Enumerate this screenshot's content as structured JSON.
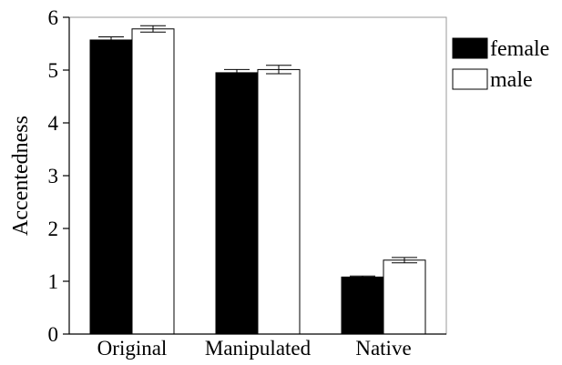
{
  "chart_data": {
    "type": "bar",
    "title": "",
    "xlabel": "",
    "ylabel": "Accentedness",
    "categories": [
      "Original",
      "Manipulated",
      "Native"
    ],
    "ylim": [
      0,
      6
    ],
    "yticks": [
      "0",
      "1",
      "2",
      "3",
      "4",
      "5",
      "6"
    ],
    "grid": false,
    "legend_position": "top-right, outside plot",
    "series": [
      {
        "name": "female",
        "color": "#000000",
        "values": [
          5.57,
          4.95,
          1.08
        ],
        "errors": [
          0.06,
          0.06,
          0.02
        ]
      },
      {
        "name": "male",
        "color": "#ffffff",
        "values": [
          5.78,
          5.01,
          1.4
        ],
        "errors": [
          0.06,
          0.08,
          0.05
        ]
      }
    ]
  }
}
